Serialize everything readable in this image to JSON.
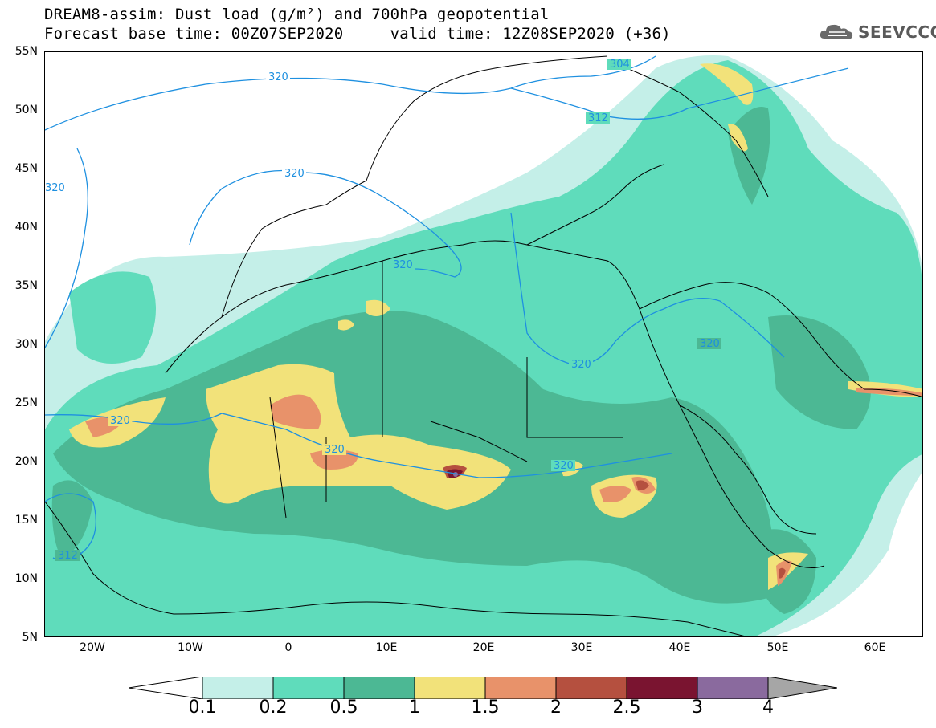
{
  "header": {
    "title_line1": "DREAM8-assim: Dust load (g/m²) and 700hPa geopotential",
    "title_line2": "Forecast base time: 00Z07SEP2020     valid time: 12Z08SEP2020 (+36)"
  },
  "logo": {
    "text": "SEEVCCC",
    "icon": "cloud-icon"
  },
  "map": {
    "lat_labels": [
      "55N",
      "50N",
      "45N",
      "40N",
      "35N",
      "30N",
      "25N",
      "20N",
      "15N",
      "10N",
      "5N"
    ],
    "lon_labels": [
      "20W",
      "10W",
      "0",
      "10E",
      "20E",
      "30E",
      "40E",
      "50E",
      "60E"
    ],
    "contour_labels": [
      "304",
      "312",
      "320",
      "320",
      "320",
      "320",
      "320",
      "320",
      "320",
      "320",
      "320",
      "312"
    ],
    "colors": {
      "c0_1": "#c4efe8",
      "c0_2": "#5fdcbb",
      "c0_5": "#4cb894",
      "c1": "#f2e27a",
      "c1_5": "#e8926a",
      "c2": "#b5503f",
      "c2_5": "#7a1430",
      "c3": "#8a6a9e",
      "c4": "#a6a6a6",
      "contour": "#1e90e0"
    }
  },
  "colorbar": {
    "labels": [
      "0.1",
      "0.2",
      "0.5",
      "1",
      "1.5",
      "2",
      "2.5",
      "3",
      "4"
    ]
  }
}
